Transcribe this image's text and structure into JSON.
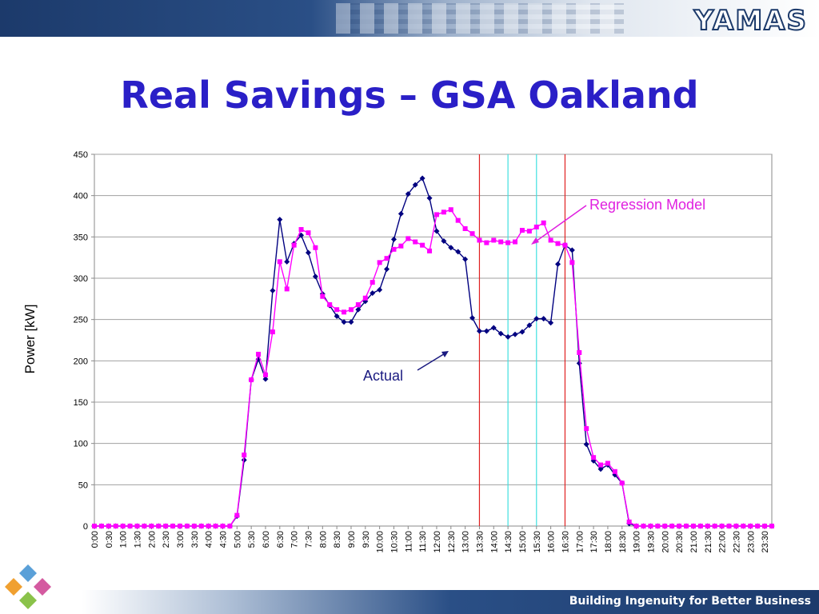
{
  "header": {
    "logo_text": "YAMAS"
  },
  "slide": {
    "title": "Real Savings – GSA Oakland"
  },
  "footer": {
    "tagline": "Building Ingenuity for Better Business"
  },
  "colors": {
    "title": "#2a1fc7",
    "actual": "#000080",
    "regression": "#ff00ff",
    "red_line": "#e02020",
    "cyan_line": "#40e0e0",
    "label_actual": "#1a1a80",
    "label_regression": "#e020e0"
  },
  "chart_data": {
    "type": "line",
    "ylabel": "Power [kW]",
    "ylim": [
      0,
      450
    ],
    "yticks": [
      0,
      50,
      100,
      150,
      200,
      250,
      300,
      350,
      400,
      450
    ],
    "x_tick_labels": [
      "0:00",
      "0:30",
      "1:00",
      "1:30",
      "2:00",
      "2:30",
      "3:00",
      "3:30",
      "4:00",
      "4:30",
      "5:00",
      "5:30",
      "6:00",
      "6:30",
      "7:00",
      "7:30",
      "8:00",
      "8:30",
      "9:00",
      "9:30",
      "10:00",
      "10:30",
      "11:00",
      "11:30",
      "12:00",
      "12:30",
      "13:00",
      "13:30",
      "14:00",
      "14:30",
      "15:00",
      "15:30",
      "16:00",
      "16:30",
      "17:00",
      "17:30",
      "18:00",
      "18:30",
      "19:00",
      "19:30",
      "20:00",
      "20:30",
      "21:00",
      "21:30",
      "22:00",
      "22:30",
      "23:00",
      "23:30"
    ],
    "x_unit": "15 min",
    "grid": true,
    "series": [
      {
        "name": "Actual",
        "marker": "diamond",
        "values": [
          0,
          0,
          0,
          0,
          0,
          0,
          0,
          0,
          0,
          0,
          0,
          0,
          0,
          0,
          0,
          0,
          0,
          0,
          0,
          0,
          12,
          80,
          177,
          202,
          178,
          285,
          371,
          320,
          342,
          352,
          331,
          302,
          281,
          267,
          254,
          247,
          247,
          262,
          272,
          282,
          286,
          311,
          347,
          378,
          402,
          413,
          421,
          397,
          357,
          345,
          337,
          332,
          323,
          252,
          236,
          236,
          240,
          233,
          229,
          232,
          235,
          243,
          251,
          251,
          246,
          317,
          340,
          334,
          197,
          99,
          79,
          69,
          74,
          62,
          52,
          3,
          0,
          0,
          0,
          0,
          0,
          0,
          0,
          0,
          0,
          0,
          0,
          0,
          0,
          0,
          0,
          0,
          0,
          0,
          0,
          0
        ]
      },
      {
        "name": "Regression Model",
        "marker": "square",
        "values": [
          0,
          0,
          0,
          0,
          0,
          0,
          0,
          0,
          0,
          0,
          0,
          0,
          0,
          0,
          0,
          0,
          0,
          0,
          0,
          0,
          13,
          86,
          177,
          208,
          183,
          235,
          320,
          287,
          340,
          359,
          355,
          337,
          278,
          268,
          262,
          259,
          262,
          268,
          276,
          295,
          319,
          324,
          335,
          339,
          348,
          344,
          340,
          333,
          377,
          380,
          383,
          370,
          360,
          354,
          346,
          343,
          346,
          344,
          343,
          344,
          358,
          357,
          362,
          367,
          346,
          342,
          340,
          319,
          210,
          118,
          83,
          74,
          76,
          66,
          52,
          5,
          0,
          0,
          0,
          0,
          0,
          0,
          0,
          0,
          0,
          0,
          0,
          0,
          0,
          0,
          0,
          0,
          0,
          0,
          0,
          0
        ]
      }
    ],
    "vertical_markers": [
      {
        "label": "13:30",
        "color": "red"
      },
      {
        "label": "14:30",
        "color": "cyan"
      },
      {
        "label": "15:30",
        "color": "cyan"
      },
      {
        "label": "16:30",
        "color": "red"
      }
    ],
    "annotations": [
      {
        "text": "Actual",
        "series": "Actual"
      },
      {
        "text": "Regression Model",
        "series": "Regression Model"
      }
    ]
  }
}
